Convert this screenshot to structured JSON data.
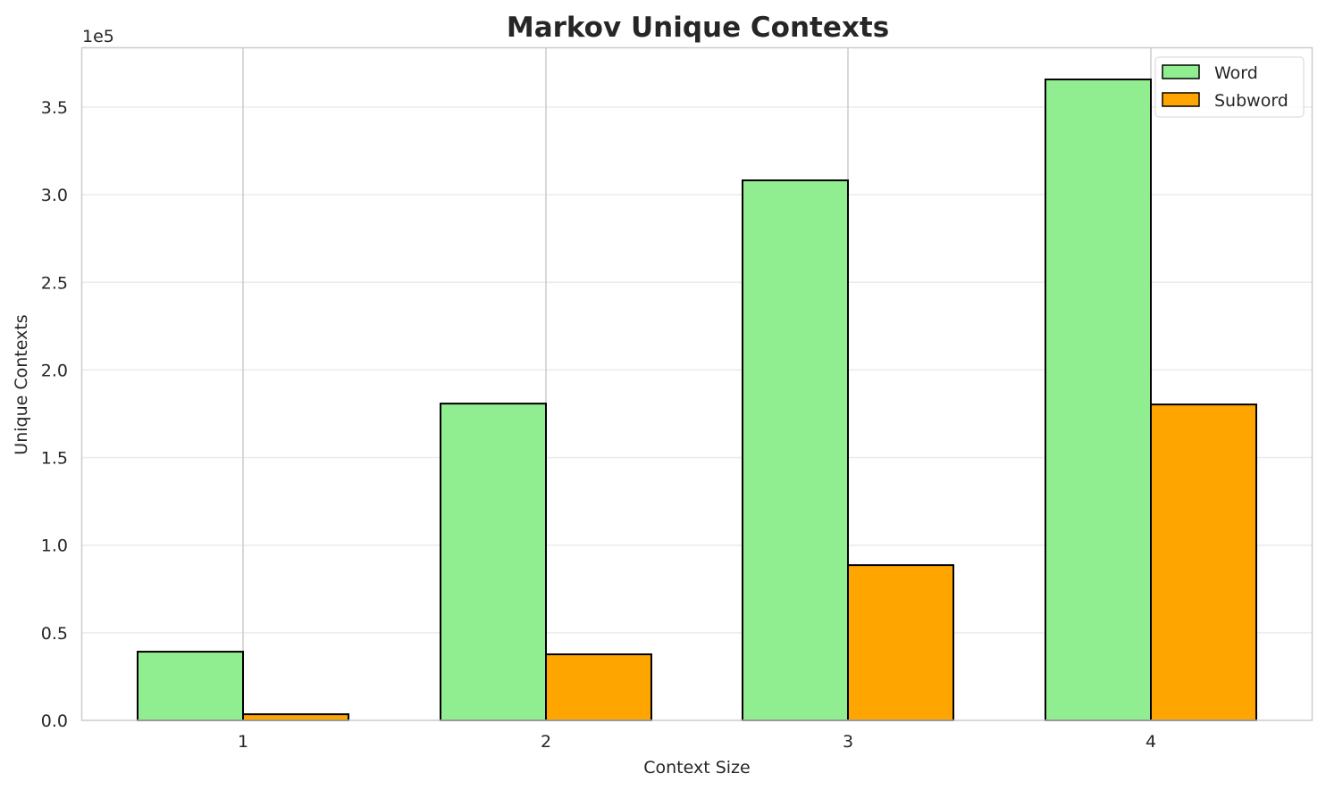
{
  "chart_data": {
    "type": "bar",
    "title": "Markov Unique Contexts",
    "xlabel": "Context Size",
    "ylabel": "Unique Contexts",
    "y_offset_label": "1e5",
    "categories": [
      "1",
      "2",
      "3",
      "4"
    ],
    "series": [
      {
        "name": "Word",
        "color": "#90ee90",
        "values": [
          39200,
          180800,
          308200,
          365800
        ]
      },
      {
        "name": "Subword",
        "color": "#ffa500",
        "values": [
          3500,
          37700,
          88600,
          180300
        ]
      }
    ],
    "ylim": [
      0,
      385000
    ],
    "yticks": [
      0,
      50000,
      100000,
      150000,
      200000,
      250000,
      300000,
      350000
    ],
    "ytick_labels": [
      "0.0",
      "0.5",
      "1.0",
      "1.5",
      "2.0",
      "2.5",
      "3.0",
      "3.5"
    ],
    "grid": true,
    "legend_position": "upper right"
  }
}
